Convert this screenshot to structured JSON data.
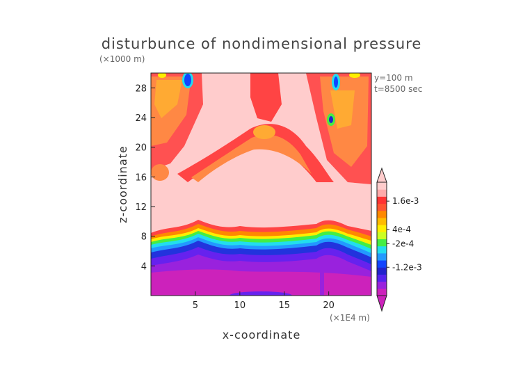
{
  "chart_data": {
    "type": "heatmap",
    "title": "disturbunce of nondimensional pressure",
    "xlabel": "x-coordinate",
    "ylabel": "z-coordinate",
    "x_unit": "(×1E4 m)",
    "y_unit": "(×1000 m)",
    "annotations": [
      "y=100 m",
      "t=8500 sec"
    ],
    "xlim": [
      0,
      24.8
    ],
    "ylim": [
      0,
      30
    ],
    "x_ticks": [
      5,
      10,
      15,
      20
    ],
    "y_ticks": [
      4,
      8,
      12,
      16,
      20,
      24,
      28
    ],
    "colorbar": {
      "labels": [
        {
          "text": "1.6e-3",
          "value": 0.0016
        },
        {
          "text": "4e-4",
          "value": 0.0004
        },
        {
          "text": "-2e-4",
          "value": -0.0002
        },
        {
          "text": "-1.2e-3",
          "value": -0.0012
        }
      ],
      "colors": [
        "#cc22bb",
        "#9922dd",
        "#5522ee",
        "#2222cc",
        "#1144ff",
        "#2299ff",
        "#22ddee",
        "#44ee44",
        "#ccff22",
        "#ffee00",
        "#ffbb00",
        "#ff8800",
        "#ff5533",
        "#ff3333",
        "#ffaaaa",
        "#ffcccc"
      ]
    },
    "regions": {
      "lower_band_value": "-1.2e-3",
      "upper_band_value": "1.6e-3",
      "interface_height": 9
    }
  }
}
